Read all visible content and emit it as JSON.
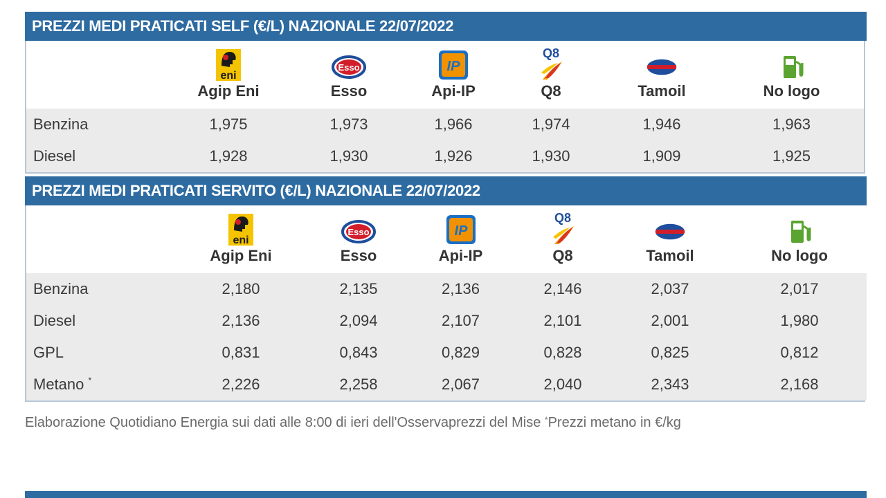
{
  "self": {
    "title": "PREZZI MEDI PRATICATI SELF (€/L) NAZIONALE 22/07/2022",
    "brands": [
      {
        "name": "Agip Eni",
        "icon": "eni-logo-icon"
      },
      {
        "name": "Esso",
        "icon": "esso-logo-icon"
      },
      {
        "name": "Api-IP",
        "icon": "ip-logo-icon"
      },
      {
        "name": "Q8",
        "icon": "q8-logo-icon"
      },
      {
        "name": "Tamoil",
        "icon": "tamoil-logo-icon"
      },
      {
        "name": "No logo",
        "icon": "fuel-pump-icon"
      }
    ],
    "rows": [
      {
        "label": "Benzina",
        "values": [
          "1,975",
          "1,973",
          "1,966",
          "1,974",
          "1,946",
          "1,963"
        ]
      },
      {
        "label": "Diesel",
        "values": [
          "1,928",
          "1,930",
          "1,926",
          "1,930",
          "1,909",
          "1,925"
        ]
      }
    ]
  },
  "servito": {
    "title": "PREZZI MEDI PRATICATI SERVITO (€/L) NAZIONALE 22/07/2022",
    "brands": [
      {
        "name": "Agip Eni",
        "icon": "eni-logo-icon"
      },
      {
        "name": "Esso",
        "icon": "esso-logo-icon"
      },
      {
        "name": "Api-IP",
        "icon": "ip-logo-icon"
      },
      {
        "name": "Q8",
        "icon": "q8-logo-icon"
      },
      {
        "name": "Tamoil",
        "icon": "tamoil-logo-icon"
      },
      {
        "name": "No logo",
        "icon": "fuel-pump-icon"
      }
    ],
    "rows": [
      {
        "label": "Benzina",
        "values": [
          "2,180",
          "2,135",
          "2,136",
          "2,146",
          "2,037",
          "2,017"
        ]
      },
      {
        "label": "Diesel",
        "values": [
          "2,136",
          "2,094",
          "2,107",
          "2,101",
          "2,001",
          "1,980"
        ]
      },
      {
        "label": "GPL",
        "values": [
          "0,831",
          "0,843",
          "0,829",
          "0,828",
          "0,825",
          "0,812"
        ]
      },
      {
        "label": "Metano",
        "label_mark": "*",
        "values": [
          "2,226",
          "2,258",
          "2,067",
          "2,040",
          "2,343",
          "2,168"
        ]
      }
    ]
  },
  "footnote": {
    "text": "Elaborazione Quotidiano Energia sui dati alle 8:00 di ieri dell'Osservaprezzi del Mise",
    "mark": "*",
    "note": "Prezzi metano in €/kg"
  },
  "logo_text": {
    "eni": "eni",
    "esso": "Esso",
    "ip": "IP",
    "q8": "Q8"
  },
  "colors": {
    "header": "#2e6ba1",
    "row_bg": "#ebebeb",
    "border": "#b7c6d6",
    "eni_yellow": "#f5c400",
    "esso_red": "#d21e2b",
    "ip_blue": "#1b6fc2",
    "q8_orange": "#f39200",
    "tamoil_blue": "#1e4e9c",
    "pump_green": "#5aa531"
  }
}
